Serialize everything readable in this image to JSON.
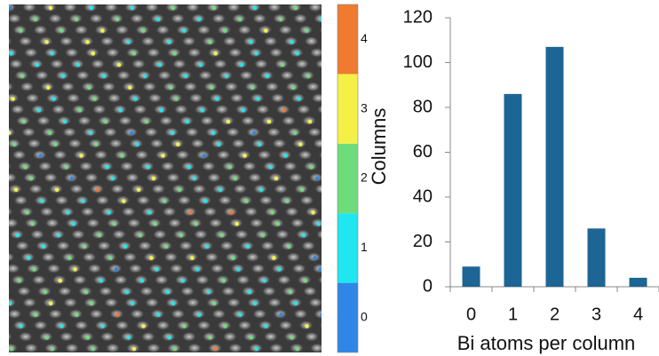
{
  "chart_data": [
    {
      "type": "image",
      "colorbar": {
        "ticks": [
          0,
          1,
          2,
          3,
          4
        ],
        "colors": [
          "#2f86e6",
          "#1fe6ef",
          "#6fdc7c",
          "#f4f046",
          "#f07a30"
        ]
      }
    },
    {
      "type": "bar",
      "categories": [
        "0",
        "1",
        "2",
        "3",
        "4"
      ],
      "values": [
        9,
        86,
        107,
        26,
        4
      ],
      "color": "#1d6594",
      "ylim": [
        0,
        120
      ],
      "yticks": [
        0,
        20,
        40,
        60,
        80,
        100,
        120
      ],
      "xlabel": "Bi atoms per column",
      "ylabel": "Columns"
    }
  ]
}
